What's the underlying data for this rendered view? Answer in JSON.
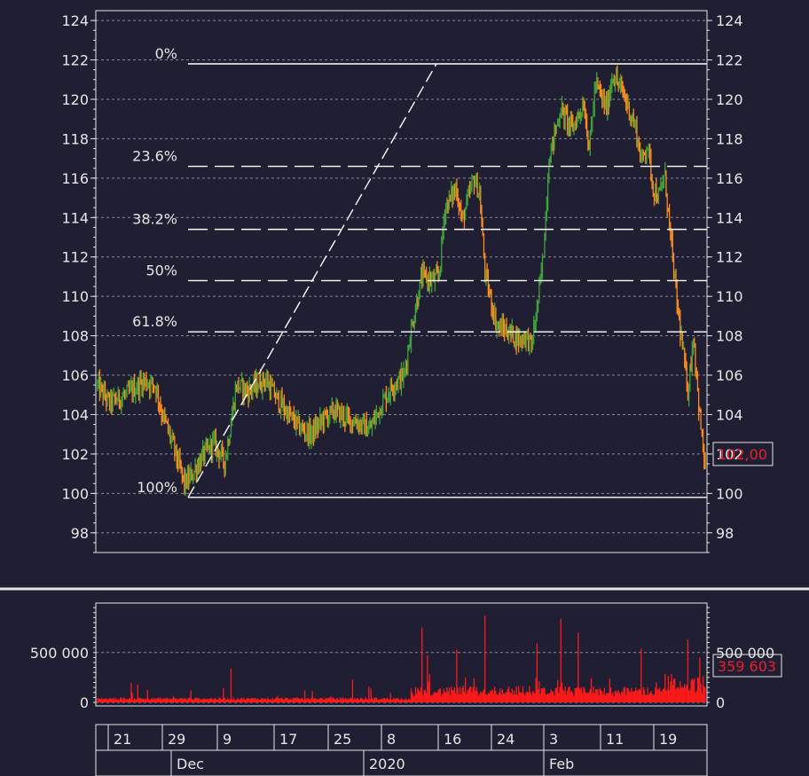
{
  "chart_data": [
    {
      "type": "candlestick",
      "title": "",
      "ylim": [
        97,
        124.5
      ],
      "y_ticks": [
        98,
        100,
        102,
        104,
        106,
        108,
        110,
        112,
        114,
        116,
        118,
        120,
        122,
        124
      ],
      "grid": true,
      "last_value_label": "102,00",
      "close_path": [
        [
          0,
          105.5
        ],
        [
          2,
          104.6
        ],
        [
          5,
          105.0
        ],
        [
          8,
          105.7
        ],
        [
          10,
          105.5
        ],
        [
          11,
          104.2
        ],
        [
          13,
          102.5
        ],
        [
          15,
          100.5
        ],
        [
          16,
          100.8
        ],
        [
          18,
          101.8
        ],
        [
          20,
          102.6
        ],
        [
          22,
          101.6
        ],
        [
          23,
          103.5
        ],
        [
          24,
          105.5
        ],
        [
          26,
          105.2
        ],
        [
          29,
          105.8
        ],
        [
          31,
          104.8
        ],
        [
          33,
          104.0
        ],
        [
          35,
          103.3
        ],
        [
          37,
          103.0
        ],
        [
          39,
          103.8
        ],
        [
          41,
          104.2
        ],
        [
          43,
          103.8
        ],
        [
          45,
          103.6
        ],
        [
          47,
          103.2
        ],
        [
          49,
          104.5
        ],
        [
          51,
          105.5
        ],
        [
          53,
          106.0
        ],
        [
          54,
          108.0
        ],
        [
          56,
          111.0
        ],
        [
          58,
          110.8
        ],
        [
          59,
          111.0
        ],
        [
          60,
          114.5
        ],
        [
          62,
          115.5
        ],
        [
          63,
          113.8
        ],
        [
          65,
          116.0
        ],
        [
          66,
          115.2
        ],
        [
          67,
          111.0
        ],
        [
          69,
          108.5
        ],
        [
          71,
          108.2
        ],
        [
          73,
          107.8
        ],
        [
          74,
          108.0
        ],
        [
          75,
          107.5
        ],
        [
          76,
          109.5
        ],
        [
          77,
          112.0
        ],
        [
          78,
          117.0
        ],
        [
          80,
          119.5
        ],
        [
          82,
          118.5
        ],
        [
          84,
          119.8
        ],
        [
          85,
          117.5
        ],
        [
          86,
          120.8
        ],
        [
          88,
          119.5
        ],
        [
          89,
          121.3
        ],
        [
          91,
          120.2
        ],
        [
          93,
          118.5
        ],
        [
          94,
          116.8
        ],
        [
          95,
          117.8
        ],
        [
          96,
          115.5
        ],
        [
          97,
          115.0
        ],
        [
          98,
          116.2
        ],
        [
          99,
          113.0
        ],
        [
          100,
          110.0
        ],
        [
          101,
          107.5
        ],
        [
          102,
          105.2
        ],
        [
          103,
          108.0
        ],
        [
          104,
          104.0
        ],
        [
          105,
          101.2
        ]
      ],
      "fibonacci": {
        "high": 121.8,
        "low": 99.8,
        "levels": [
          {
            "label": "0%",
            "value": 121.8
          },
          {
            "label": "23.6%",
            "value": 116.6
          },
          {
            "label": "38.2%",
            "value": 113.4
          },
          {
            "label": "50%",
            "value": 110.8
          },
          {
            "label": "61.8%",
            "value": 108.2
          },
          {
            "label": "100%",
            "value": 99.8
          }
        ]
      },
      "up_color": "#3fa33a",
      "down_color": "#ff8c1a"
    },
    {
      "type": "bar",
      "name": "volume",
      "ylim": [
        0,
        960000
      ],
      "y_ticks": [
        {
          "value": 0,
          "label": "0"
        },
        {
          "value": 500000,
          "label": "500 000"
        }
      ],
      "last_value_label": "359 603",
      "spikes": [
        {
          "x": 7,
          "value": 180000
        },
        {
          "x": 23,
          "value": 340000
        },
        {
          "x": 44,
          "value": 230000
        },
        {
          "x": 56,
          "value": 750000
        },
        {
          "x": 57,
          "value": 470000
        },
        {
          "x": 62,
          "value": 530000
        },
        {
          "x": 67,
          "value": 870000
        },
        {
          "x": 76,
          "value": 590000
        },
        {
          "x": 80,
          "value": 840000
        },
        {
          "x": 83,
          "value": 700000
        },
        {
          "x": 94,
          "value": 540000
        },
        {
          "x": 102,
          "value": 630000
        },
        {
          "x": 104,
          "value": 450000
        }
      ],
      "bar_color": "#ff1a1a"
    }
  ],
  "time_axis": {
    "day_ticks": [
      "21",
      "29",
      "9",
      "17",
      "25",
      "8",
      "16",
      "24",
      "3",
      "11",
      "19"
    ],
    "month_labels": [
      "Dec",
      "2020",
      "Feb"
    ]
  },
  "colors": {
    "background": "#1f1e33",
    "axis": "#e6e6e6",
    "grid": "#8a8a99",
    "fib_line": "#ffffff",
    "badge": "#e8202a"
  }
}
